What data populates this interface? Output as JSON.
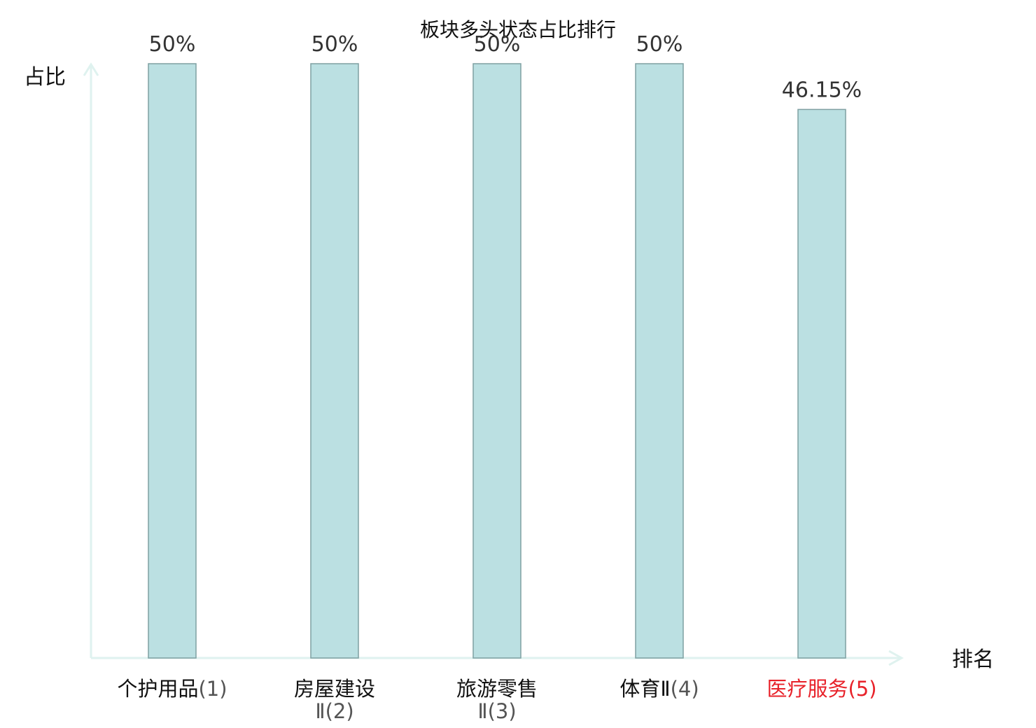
{
  "chart_data": {
    "type": "bar",
    "title": "板块多头状态占比排行",
    "ylabel": "占比",
    "xlabel": "排名",
    "ylim": [
      0,
      50
    ],
    "grid": false,
    "categories": [
      {
        "lines": [
          "个护用品",
          "(1)"
        ],
        "highlight": false
      },
      {
        "lines": [
          "房屋建设",
          "Ⅱ(2)"
        ],
        "highlight": false
      },
      {
        "lines": [
          "旅游零售",
          "Ⅱ(3)"
        ],
        "highlight": false
      },
      {
        "lines": [
          "体育Ⅱ",
          "(4)"
        ],
        "highlight": false
      },
      {
        "lines": [
          "医疗服务",
          "(5)"
        ],
        "highlight": true
      }
    ],
    "values": [
      50,
      50,
      50,
      50,
      46.15
    ],
    "value_labels": [
      "50%",
      "50%",
      "50%",
      "50%",
      "46.15%"
    ],
    "colors": {
      "bar_fill": "#bbe0e2",
      "bar_stroke": "#7fa0a2",
      "axis": "#dff2ef",
      "highlight": "#e8222a"
    }
  }
}
